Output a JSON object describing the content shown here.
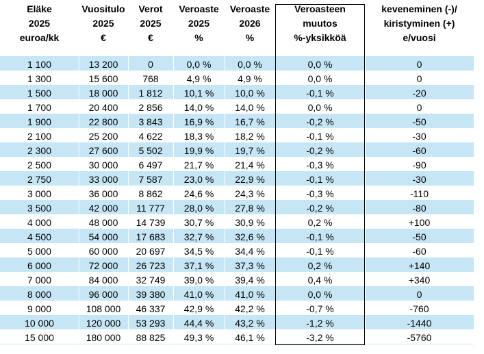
{
  "table": {
    "columns": [
      [
        "Eläke",
        "2025",
        "euroa/kk"
      ],
      [
        "Vuositulo",
        "2025",
        "€"
      ],
      [
        "Verot",
        "2025",
        "€"
      ],
      [
        "Veroaste",
        "2025",
        "%"
      ],
      [
        "Veroaste",
        "2026",
        "%"
      ],
      [
        "Veroasteen",
        "muutos",
        "%-yksikköä"
      ],
      [
        "keveneminen (-)/",
        "kiristyminen (+)",
        "e/vuosi"
      ]
    ],
    "rows": [
      [
        "1 100",
        "13 200",
        "0",
        "0,0 %",
        "0,0 %",
        "0,0 %",
        "0"
      ],
      [
        "1 300",
        "15 600",
        "768",
        "4,9 %",
        "4,9 %",
        "0,0 %",
        "0"
      ],
      [
        "1 500",
        "18 000",
        "1 812",
        "10,1 %",
        "10,0 %",
        "-0,1 %",
        "-20"
      ],
      [
        "1 700",
        "20 400",
        "2 856",
        "14,0 %",
        "14,0 %",
        "0,0 %",
        "0"
      ],
      [
        "1 900",
        "22 800",
        "3 843",
        "16,9 %",
        "16,7 %",
        "-0,2 %",
        "-50"
      ],
      [
        "2 100",
        "25 200",
        "4 622",
        "18,3 %",
        "18,2 %",
        "-0,1 %",
        "-30"
      ],
      [
        "2 300",
        "27 600",
        "5 502",
        "19,9 %",
        "19,7 %",
        "-0,2 %",
        "-60"
      ],
      [
        "2 500",
        "30 000",
        "6 497",
        "21,7 %",
        "21,4 %",
        "-0,3 %",
        "-90"
      ],
      [
        "2 750",
        "33 000",
        "7 587",
        "23,0 %",
        "22,9 %",
        "-0,1 %",
        "-30"
      ],
      [
        "3 000",
        "36 000",
        "8 862",
        "24,6 %",
        "24,3 %",
        "-0,3 %",
        "-110"
      ],
      [
        "3 500",
        "42 000",
        "11 777",
        "28,0 %",
        "27,8 %",
        "-0,2 %",
        "-80"
      ],
      [
        "4 000",
        "48 000",
        "14 739",
        "30,7 %",
        "30,9 %",
        "0,2 %",
        "+100"
      ],
      [
        "4 500",
        "54 000",
        "17 683",
        "32,7 %",
        "32,6 %",
        "-0,1 %",
        "-50"
      ],
      [
        "5 000",
        "60 000",
        "20 697",
        "34,5 %",
        "34,4 %",
        "-0,1 %",
        "-60"
      ],
      [
        "6 000",
        "72 000",
        "26 723",
        "37,1 %",
        "37,3 %",
        "0,2 %",
        "+140"
      ],
      [
        "7 000",
        "84 000",
        "32 749",
        "39,0 %",
        "39,4 %",
        "0,4 %",
        "+340"
      ],
      [
        "8 000",
        "96 000",
        "39 380",
        "41,0 %",
        "41,0 %",
        "0,0 %",
        "0"
      ],
      [
        "9 000",
        "108 000",
        "46 337",
        "42,9 %",
        "42,2 %",
        "-0,7 %",
        "-760"
      ],
      [
        "10 000",
        "120 000",
        "53 293",
        "44,4 %",
        "43,2 %",
        "-1,2 %",
        "-1440"
      ],
      [
        "15 000",
        "180 000",
        "88 825",
        "49,3 %",
        "46,1 %",
        "-3,2 %",
        "-5760"
      ]
    ]
  }
}
